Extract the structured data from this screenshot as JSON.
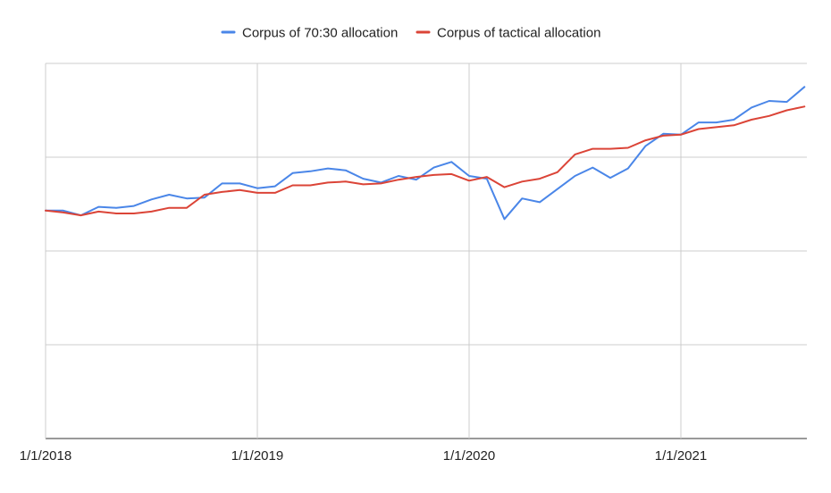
{
  "chart_data": {
    "type": "line",
    "title": "",
    "xlabel": "",
    "ylabel": "",
    "x_ticks": [
      "1/1/2018",
      "1/1/2019",
      "1/1/2020",
      "1/1/2021"
    ],
    "y_axis": {
      "ylim": [
        0,
        4
      ],
      "gridlines": [
        0,
        1,
        2,
        3,
        4
      ],
      "tick_labels_visible": false
    },
    "grid": true,
    "legend": {
      "placement": "top-center"
    },
    "x": [
      "2018-01",
      "2018-02",
      "2018-03",
      "2018-04",
      "2018-05",
      "2018-06",
      "2018-07",
      "2018-08",
      "2018-09",
      "2018-10",
      "2018-11",
      "2018-12",
      "2019-01",
      "2019-02",
      "2019-03",
      "2019-04",
      "2019-05",
      "2019-06",
      "2019-07",
      "2019-08",
      "2019-09",
      "2019-10",
      "2019-11",
      "2019-12",
      "2020-01",
      "2020-02",
      "2020-03",
      "2020-04",
      "2020-05",
      "2020-06",
      "2020-07",
      "2020-08",
      "2020-09",
      "2020-10",
      "2020-11",
      "2020-12",
      "2021-01",
      "2021-02",
      "2021-03",
      "2021-04",
      "2021-05",
      "2021-06",
      "2021-07",
      "2021-08"
    ],
    "series": [
      {
        "name": "Corpus of 70:30 allocation",
        "color": "#4a86e8",
        "values": [
          2.43,
          2.43,
          2.38,
          2.47,
          2.46,
          2.48,
          2.55,
          2.6,
          2.56,
          2.57,
          2.72,
          2.72,
          2.67,
          2.69,
          2.83,
          2.85,
          2.88,
          2.86,
          2.77,
          2.73,
          2.8,
          2.76,
          2.89,
          2.95,
          2.8,
          2.77,
          2.34,
          2.56,
          2.52,
          2.66,
          2.8,
          2.89,
          2.78,
          2.88,
          3.12,
          3.25,
          3.24,
          3.37,
          3.37,
          3.4,
          3.53,
          3.6,
          3.59,
          3.75
        ]
      },
      {
        "name": "Corpus of tactical allocation",
        "color": "#db4437",
        "values": [
          2.43,
          2.41,
          2.38,
          2.42,
          2.4,
          2.4,
          2.42,
          2.46,
          2.46,
          2.6,
          2.63,
          2.65,
          2.62,
          2.62,
          2.7,
          2.7,
          2.73,
          2.74,
          2.71,
          2.72,
          2.76,
          2.79,
          2.81,
          2.82,
          2.75,
          2.79,
          2.68,
          2.74,
          2.77,
          2.84,
          3.03,
          3.09,
          3.09,
          3.1,
          3.18,
          3.23,
          3.24,
          3.3,
          3.32,
          3.34,
          3.4,
          3.44,
          3.5,
          3.54
        ]
      }
    ]
  }
}
